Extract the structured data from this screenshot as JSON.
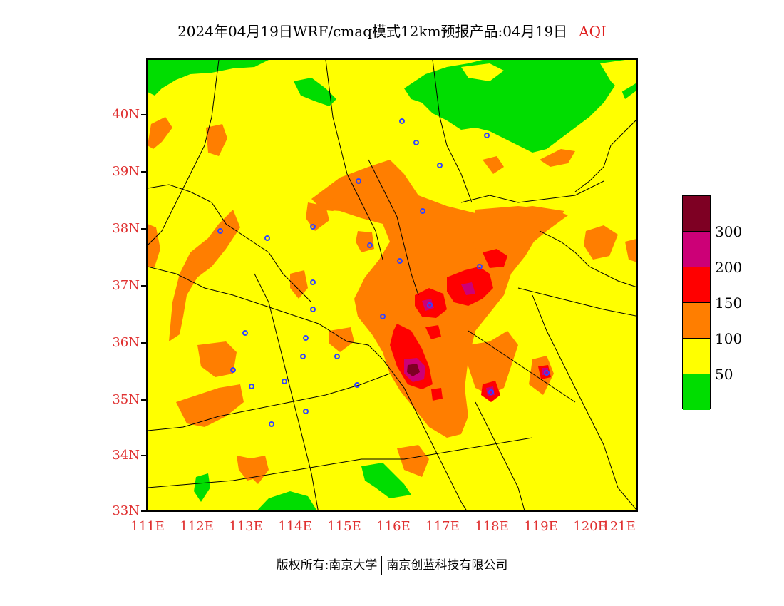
{
  "title": {
    "main": "2024年04月19日WRF/cmaq模式12km预报产品:04月19日",
    "variable": "AQI"
  },
  "map": {
    "lat_labels": [
      "40N",
      "39N",
      "38N",
      "37N",
      "36N",
      "35N",
      "34N",
      "33N"
    ],
    "lon_labels": [
      "111E",
      "112E",
      "113E",
      "114E",
      "115E",
      "116E",
      "117E",
      "118E",
      "119E",
      "120E",
      "121E"
    ],
    "colors": {
      "good": "#00dd00",
      "moderate": "#ffff00",
      "unhealthy_sensitive": "#ff7e00",
      "unhealthy": "#ff0000",
      "very_unhealthy": "#cc0077",
      "hazardous": "#7e0023",
      "axis_text": "#e03030",
      "city_marker": "#3344ff"
    }
  },
  "legend": {
    "levels": [
      "300",
      "200",
      "150",
      "100",
      "50"
    ],
    "colors": [
      "#7e0023",
      "#cc0077",
      "#ff0000",
      "#ff7e00",
      "#ffff00",
      "#00dd00"
    ]
  },
  "footer": {
    "copyright": "版权所有:南京大学",
    "company": "南京创蓝科技有限公司"
  }
}
